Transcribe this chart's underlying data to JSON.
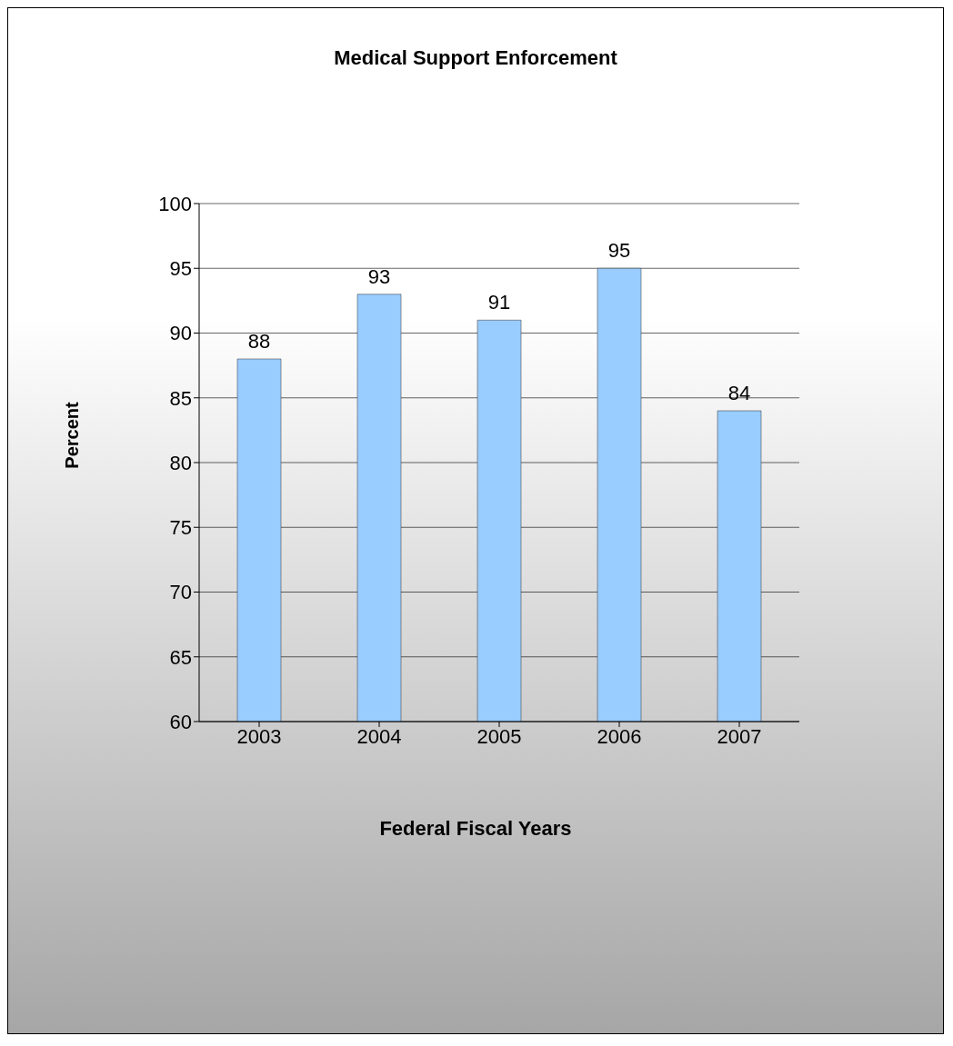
{
  "chart_data": {
    "type": "bar",
    "title": "Medical Support Enforcement",
    "xlabel": "Federal Fiscal Years",
    "ylabel": "Percent",
    "categories": [
      "2003",
      "2004",
      "2005",
      "2006",
      "2007"
    ],
    "values": [
      88,
      93,
      91,
      95,
      84
    ],
    "color": "#99ccff",
    "ylim": [
      60,
      100
    ],
    "yticks": [
      60,
      65,
      70,
      75,
      80,
      85,
      90,
      95,
      100
    ],
    "grid": "y",
    "data_labels": true
  }
}
